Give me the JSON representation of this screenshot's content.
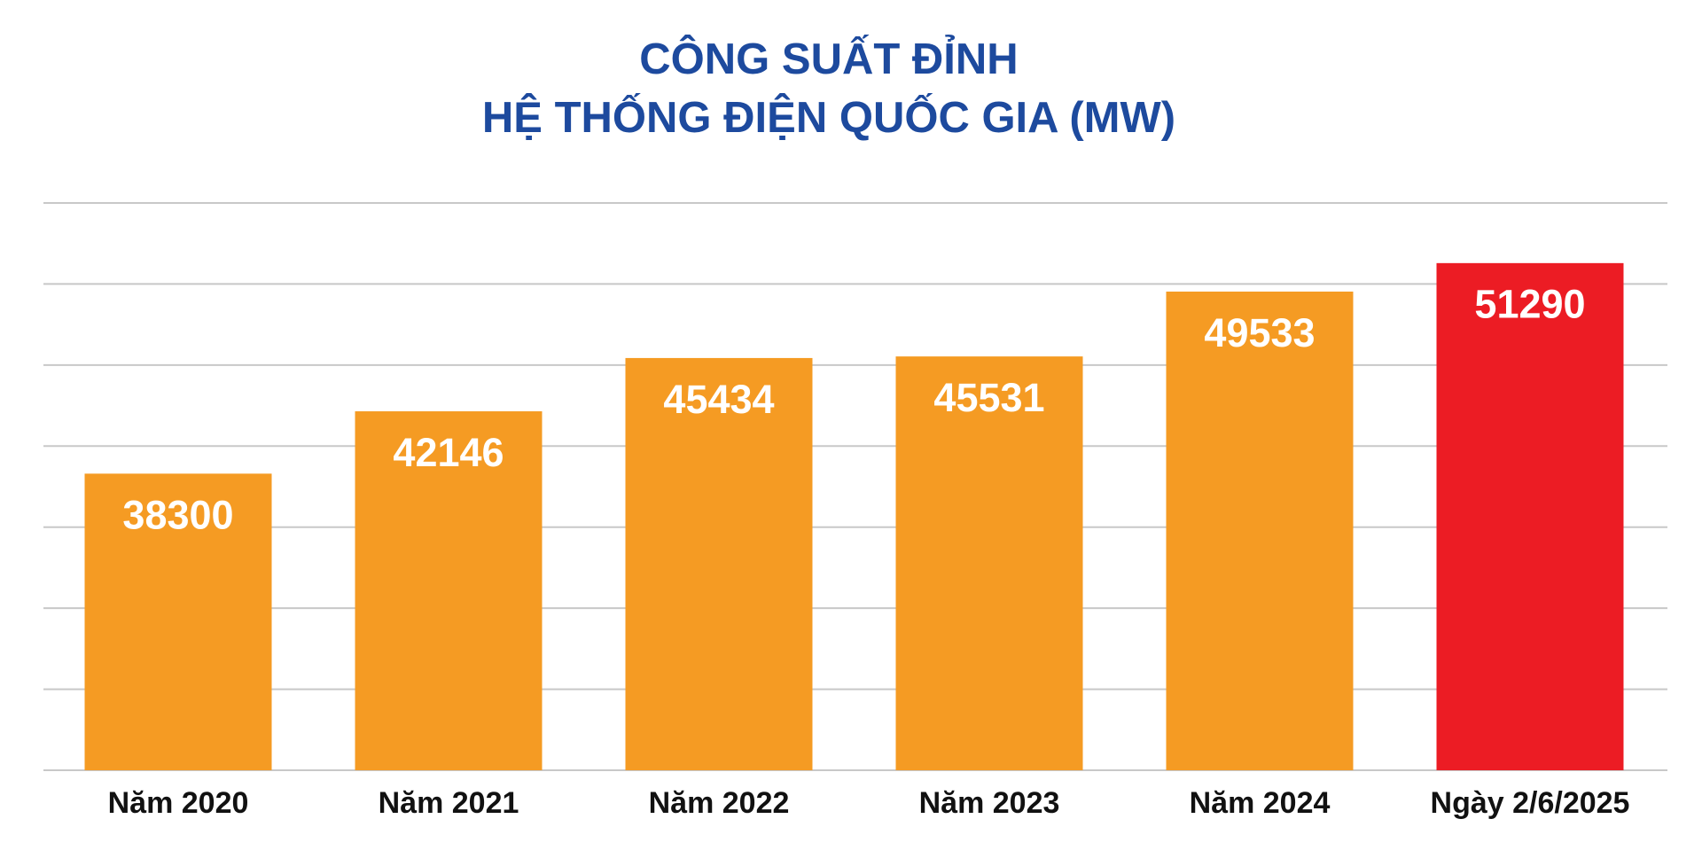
{
  "chart_data": {
    "type": "bar",
    "title": [
      "CÔNG SUẤT ĐỈNH",
      "HỆ THỐNG ĐIỆN QUỐC GIA (MW)"
    ],
    "categories": [
      "Năm 2020",
      "Năm 2021",
      "Năm 2022",
      "Năm 2023",
      "Năm 2024",
      "Ngày 2/6/2025"
    ],
    "values": [
      38300,
      42146,
      45434,
      45531,
      49533,
      51290
    ],
    "colors": [
      "#f59b23",
      "#f59b23",
      "#f59b23",
      "#f59b23",
      "#f59b23",
      "#ec1c24"
    ],
    "ylim": [
      20000,
      55000
    ],
    "yticks": [
      20000,
      25000,
      30000,
      35000,
      40000,
      45000,
      50000,
      55000
    ],
    "grid": true
  }
}
